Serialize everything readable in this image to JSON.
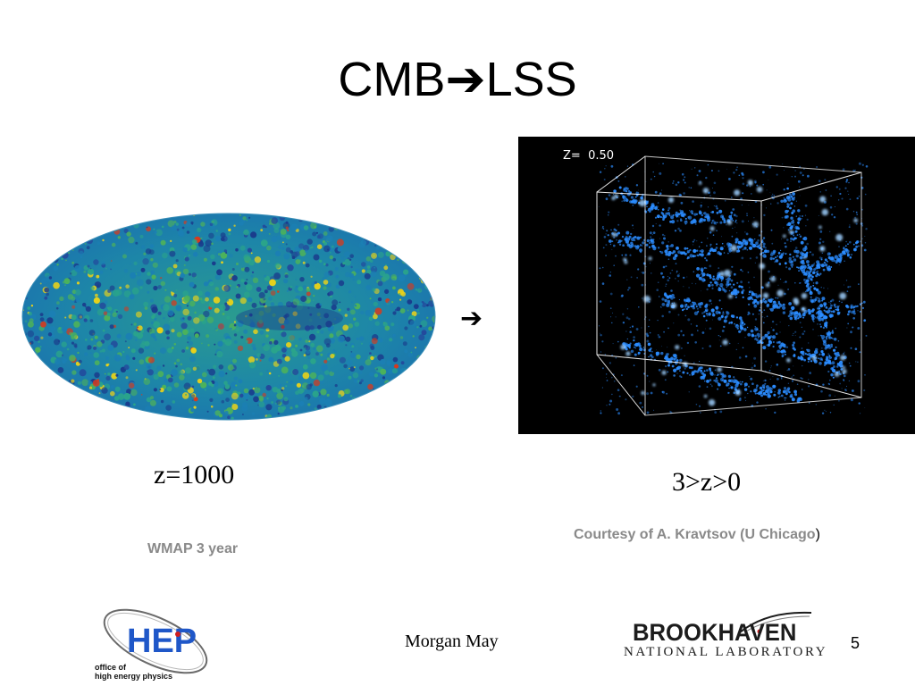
{
  "slide": {
    "title": "CMB➔LSS",
    "arrow": "➔",
    "left_caption": "z=1000",
    "right_caption": "3>z>0",
    "left_credit": "WMAP 3 year",
    "right_credit_main": "Courtesy of A. Kravtsov (U Chicago",
    "right_credit_close": ")",
    "simulation_label": "Z=  0.50",
    "presenter": "Morgan May",
    "page_number": "5"
  },
  "footer": {
    "hep_logo_text": "HEP",
    "hep_subtitle_line1": "office of",
    "hep_subtitle_line2": "high energy physics",
    "bnl_wordmark": "BROOKHAVEN",
    "bnl_subtitle": "NATIONAL LABORATORY"
  },
  "colors": {
    "credit_gray": "#8a8a8a",
    "cmb_base": "#1f8fb5",
    "cmb_hot": "#e8d11a",
    "cmb_very_hot": "#d8391c",
    "cmb_cold": "#1a3c8c",
    "lss_filament": "#2b8cff",
    "hep_blue": "#1f57c8"
  }
}
